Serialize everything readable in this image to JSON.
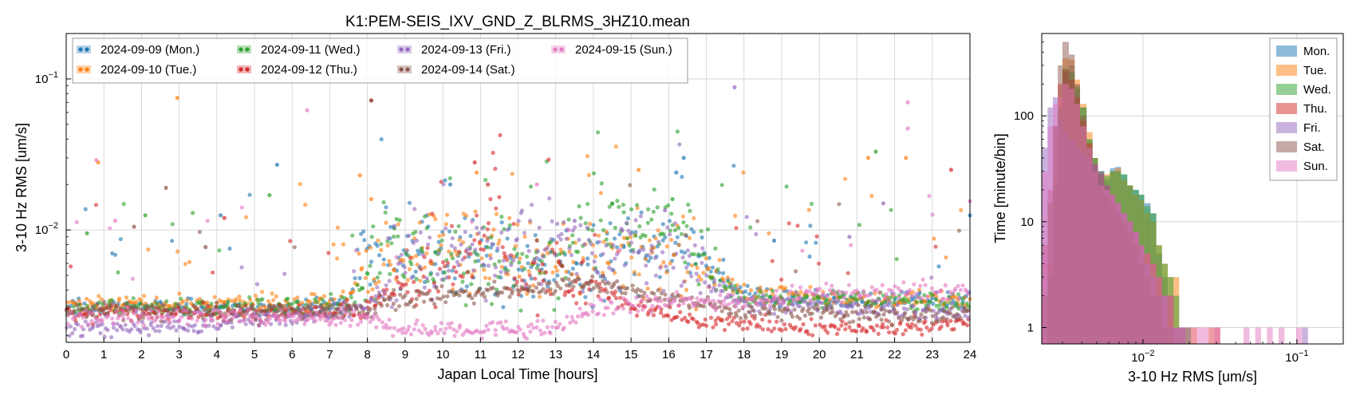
{
  "chart_data": [
    {
      "type": "scatter",
      "title": "K1:PEM-SEIS_IXV_GND_Z_BLRMS_3HZ10.mean",
      "xlabel": "Japan Local Time [hours]",
      "ylabel": "3-10 Hz RMS [um/s]",
      "xlim": [
        0,
        24
      ],
      "ylim": [
        0.0018,
        0.2
      ],
      "yscale": "log",
      "grid": true,
      "legend_position": "top-left",
      "x_ticks": [
        "0",
        "1",
        "2",
        "3",
        "4",
        "5",
        "6",
        "7",
        "8",
        "9",
        "10",
        "11",
        "12",
        "13",
        "14",
        "15",
        "16",
        "17",
        "18",
        "19",
        "20",
        "21",
        "22",
        "23",
        "24"
      ],
      "y_ticks": [
        {
          "value": 0.1,
          "base": "10",
          "exp": "−1"
        },
        {
          "value": 0.01,
          "base": "10",
          "exp": "−2"
        }
      ],
      "series": [
        {
          "name": "2024-09-09 (Mon.)",
          "color": "#1f77b4",
          "day_curve": [
            [
              0,
              0.0031
            ],
            [
              6,
              0.003
            ],
            [
              7.5,
              0.0033
            ],
            [
              8.2,
              0.0075
            ],
            [
              11,
              0.0065
            ],
            [
              13,
              0.005
            ],
            [
              16,
              0.008
            ],
            [
              17.5,
              0.0045
            ],
            [
              18.5,
              0.0035
            ],
            [
              24,
              0.0034
            ]
          ],
          "outliers": [
            [
              5.6,
              0.027
            ],
            [
              16.4,
              0.03
            ],
            [
              4.1,
              0.0125
            ],
            [
              10.2,
              0.02
            ],
            [
              16.2,
              0.024
            ],
            [
              18.8,
              0.0085
            ],
            [
              24,
              0.0125
            ]
          ]
        },
        {
          "name": "2024-09-10 (Tue.)",
          "color": "#ff7f0e",
          "day_curve": [
            [
              0,
              0.0032
            ],
            [
              6,
              0.0033
            ],
            [
              7.5,
              0.0034
            ],
            [
              8.3,
              0.007
            ],
            [
              11,
              0.0075
            ],
            [
              13,
              0.006
            ],
            [
              16,
              0.007
            ],
            [
              17,
              0.005
            ],
            [
              18,
              0.0038
            ],
            [
              24,
              0.0033
            ]
          ],
          "outliers": [
            [
              2.95,
              0.075
            ],
            [
              0.85,
              0.028
            ],
            [
              7.8,
              0.023
            ],
            [
              10.9,
              0.024
            ],
            [
              15.2,
              0.025
            ],
            [
              21.3,
              0.03
            ],
            [
              22.3,
              0.03
            ],
            [
              8.1,
              0.016
            ]
          ]
        },
        {
          "name": "2024-09-11 (Wed.)",
          "color": "#2ca02c",
          "day_curve": [
            [
              0,
              0.003
            ],
            [
              6,
              0.0031
            ],
            [
              7.5,
              0.0032
            ],
            [
              8.5,
              0.0065
            ],
            [
              11,
              0.006
            ],
            [
              13,
              0.0055
            ],
            [
              14,
              0.012
            ],
            [
              16,
              0.012
            ],
            [
              17,
              0.005
            ],
            [
              18,
              0.0035
            ],
            [
              24,
              0.0033
            ]
          ],
          "outliers": [
            [
              21.5,
              0.033
            ],
            [
              5.4,
              0.017
            ],
            [
              0.55,
              0.0095
            ],
            [
              2.1,
              0.0125
            ],
            [
              16.1,
              0.016
            ],
            [
              14.5,
              0.015
            ]
          ]
        },
        {
          "name": "2024-09-12 (Thu.)",
          "color": "#d62728",
          "day_curve": [
            [
              0,
              0.0028
            ],
            [
              6,
              0.0028
            ],
            [
              8,
              0.0031
            ],
            [
              9,
              0.0045
            ],
            [
              11,
              0.0065
            ],
            [
              11.3,
              0.015
            ],
            [
              12,
              0.004
            ],
            [
              13,
              0.0055
            ],
            [
              15,
              0.003
            ],
            [
              17,
              0.0025
            ],
            [
              20,
              0.0022
            ],
            [
              24,
              0.0024
            ]
          ],
          "outliers": [
            [
              11.2,
              0.02
            ],
            [
              23.5,
              0.025
            ],
            [
              8.1,
              0.072
            ],
            [
              10.85,
              0.028
            ],
            [
              4.2,
              0.012
            ]
          ]
        },
        {
          "name": "2024-09-13 (Fri.)",
          "color": "#9467bd",
          "day_curve": [
            [
              0,
              0.0022
            ],
            [
              2,
              0.0022
            ],
            [
              4,
              0.0024
            ],
            [
              6,
              0.0027
            ],
            [
              8,
              0.003
            ],
            [
              9,
              0.0055
            ],
            [
              12,
              0.0075
            ],
            [
              14,
              0.0085
            ],
            [
              16,
              0.0065
            ],
            [
              17,
              0.0045
            ],
            [
              18,
              0.0032
            ],
            [
              24,
              0.0028
            ]
          ],
          "outliers": [
            [
              17.75,
              0.088
            ],
            [
              21.7,
              0.015
            ],
            [
              20.8,
              0.009
            ],
            [
              13.5,
              0.0115
            ],
            [
              15.9,
              0.0135
            ]
          ]
        },
        {
          "name": "2024-09-14 (Sat.)",
          "color": "#8c564b",
          "day_curve": [
            [
              0,
              0.0029
            ],
            [
              8,
              0.0029
            ],
            [
              9,
              0.0036
            ],
            [
              12,
              0.004
            ],
            [
              14,
              0.0045
            ],
            [
              16,
              0.0035
            ],
            [
              18,
              0.0029
            ],
            [
              24,
              0.0027
            ]
          ],
          "outliers": [
            [
              2.65,
              0.019
            ],
            [
              8.1,
              0.072
            ],
            [
              1.8,
              0.0105
            ],
            [
              3.7,
              0.0077
            ],
            [
              12.5,
              0.0085
            ]
          ]
        },
        {
          "name": "2024-09-15 (Sun.)",
          "color": "#e377c2",
          "day_curve": [
            [
              0,
              0.0027
            ],
            [
              6,
              0.0026
            ],
            [
              8,
              0.0025
            ],
            [
              9,
              0.0022
            ],
            [
              13,
              0.0022
            ],
            [
              14,
              0.003
            ],
            [
              16,
              0.0033
            ],
            [
              18,
              0.0034
            ],
            [
              20,
              0.0038
            ],
            [
              24,
              0.004
            ]
          ],
          "outliers": [
            [
              22.35,
              0.07
            ],
            [
              6.4,
              0.062
            ],
            [
              22.35,
              0.047
            ],
            [
              0.8,
              0.029
            ],
            [
              12.5,
              0.02
            ],
            [
              24,
              0.0155
            ],
            [
              1.3,
              0.0115
            ]
          ]
        }
      ]
    },
    {
      "type": "histogram",
      "xlabel": "3-10 Hz RMS [um/s]",
      "ylabel": "Time [minute/bin]",
      "xscale": "log",
      "yscale": "log",
      "xlim": [
        0.0022,
        0.2
      ],
      "ylim": [
        0.7,
        600
      ],
      "grid": true,
      "legend_position": "top-right",
      "x_ticks": [
        {
          "value": 0.01,
          "base": "10",
          "exp": "−2"
        },
        {
          "value": 0.1,
          "base": "10",
          "exp": "−1"
        }
      ],
      "y_ticks": [
        {
          "value": 1,
          "label": "1"
        },
        {
          "value": 10,
          "label": "10"
        },
        {
          "value": 100,
          "label": "100"
        }
      ],
      "bin_edges": [
        0.0022,
        0.0024,
        0.0026,
        0.0028,
        0.003,
        0.0033,
        0.0036,
        0.0039,
        0.0043,
        0.0047,
        0.0051,
        0.0056,
        0.0061,
        0.0066,
        0.0072,
        0.0079,
        0.0086,
        0.0094,
        0.0102,
        0.0112,
        0.0122,
        0.0133,
        0.0145,
        0.0158,
        0.0172,
        0.0188,
        0.0205,
        0.0224,
        0.0245,
        0.0267,
        0.0291,
        0.0318,
        0.0347,
        0.0379,
        0.0413,
        0.045,
        0.0492,
        0.0536,
        0.0585,
        0.0639,
        0.0697,
        0.076,
        0.083,
        0.0905,
        0.0988,
        0.108,
        0.118
      ],
      "series": [
        {
          "name": "Mon.",
          "color": "#1f77b4",
          "counts": [
            0,
            3,
            20,
            110,
            260,
            300,
            180,
            120,
            60,
            40,
            30,
            25,
            32,
            33,
            28,
            22,
            20,
            18,
            15,
            12,
            5,
            3,
            2,
            1,
            1,
            1,
            0,
            0,
            0,
            0,
            0,
            0,
            0,
            0,
            0,
            0,
            0,
            0,
            0,
            0,
            0,
            0,
            0,
            0,
            0,
            0
          ]
        },
        {
          "name": "Tue.",
          "color": "#ff7f0e",
          "counts": [
            0,
            4,
            25,
            150,
            350,
            340,
            220,
            130,
            70,
            40,
            30,
            28,
            30,
            32,
            25,
            22,
            18,
            16,
            12,
            10,
            6,
            4,
            3,
            3,
            1,
            1,
            1,
            0,
            0,
            1,
            0,
            0,
            0,
            0,
            0,
            0,
            0,
            0,
            0,
            0,
            0,
            0,
            0,
            0,
            0,
            0
          ]
        },
        {
          "name": "Wed.",
          "color": "#2ca02c",
          "counts": [
            0,
            3,
            22,
            120,
            280,
            260,
            190,
            120,
            60,
            40,
            30,
            27,
            30,
            30,
            28,
            22,
            20,
            18,
            14,
            12,
            6,
            4,
            3,
            2,
            1,
            1,
            0,
            0,
            0,
            0,
            0,
            0,
            0,
            0,
            0,
            0,
            0,
            0,
            0,
            0,
            0,
            0,
            0,
            0,
            0,
            0
          ]
        },
        {
          "name": "Thu.",
          "color": "#d62728",
          "counts": [
            6,
            20,
            80,
            200,
            270,
            220,
            150,
            90,
            55,
            35,
            28,
            22,
            18,
            15,
            12,
            10,
            8,
            6,
            5,
            4,
            3,
            2,
            2,
            1,
            1,
            0,
            0,
            0,
            0,
            0,
            1,
            0,
            0,
            0,
            0,
            0,
            0,
            0,
            0,
            0,
            0,
            0,
            0,
            0,
            0,
            0
          ]
        },
        {
          "name": "Fri.",
          "color": "#9467bd",
          "counts": [
            50,
            120,
            150,
            90,
            70,
            60,
            50,
            45,
            40,
            35,
            30,
            22,
            18,
            15,
            12,
            10,
            8,
            6,
            4,
            3,
            2,
            2,
            1,
            1,
            1,
            0,
            0,
            0,
            0,
            0,
            0,
            0,
            0,
            0,
            0,
            0,
            0,
            0,
            0,
            0,
            0,
            0,
            0,
            0,
            0,
            1
          ]
        },
        {
          "name": "Sat.",
          "color": "#8c564b",
          "counts": [
            2,
            15,
            80,
            300,
            500,
            380,
            200,
            100,
            50,
            30,
            22,
            18,
            15,
            12,
            10,
            8,
            6,
            4,
            3,
            2,
            2,
            1,
            1,
            0,
            0,
            0,
            0,
            0,
            0,
            0,
            0,
            0,
            0,
            0,
            0,
            0,
            0,
            0,
            0,
            0,
            0,
            0,
            0,
            0,
            0,
            0
          ]
        },
        {
          "name": "Sun.",
          "color": "#e377c2",
          "counts": [
            30,
            80,
            130,
            150,
            200,
            180,
            130,
            80,
            50,
            30,
            22,
            20,
            18,
            15,
            12,
            10,
            8,
            6,
            5,
            4,
            3,
            2,
            2,
            1,
            1,
            1,
            1,
            1,
            1,
            1,
            1,
            0,
            0,
            0,
            0,
            1,
            0,
            1,
            0,
            1,
            0,
            1,
            0,
            0,
            1,
            0
          ]
        }
      ]
    }
  ]
}
